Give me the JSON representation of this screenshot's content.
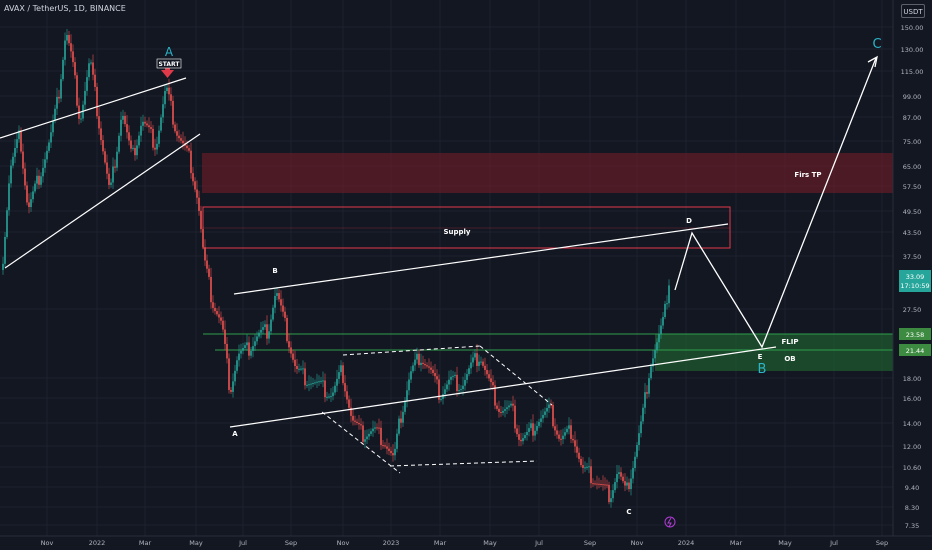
{
  "header": {
    "symbol_line": "AVAX / TetherUS, 1D, BINANCE"
  },
  "price_axis": {
    "currency": "USDT",
    "ticks": [
      "150.00",
      "130.00",
      "115.00",
      "99.00",
      "87.00",
      "75.00",
      "65.00",
      "57.50",
      "49.50",
      "43.50",
      "37.50",
      "27.50",
      "18.00",
      "16.00",
      "14.00",
      "12.00",
      "10.60",
      "9.40",
      "8.30",
      "7.35"
    ],
    "last_price": "33.09",
    "countdown": "17:10:59",
    "flip_top_price": "23.58",
    "flip_bottom_price": "21.44"
  },
  "time_axis": {
    "labels": [
      "Nov",
      "2022",
      "Mar",
      "May",
      "Jul",
      "Sep",
      "Nov",
      "2023",
      "Mar",
      "May",
      "Jul",
      "Sep",
      "Nov",
      "2024",
      "Mar",
      "May",
      "Jul",
      "Sep"
    ]
  },
  "annotations": {
    "start": "START",
    "wave_a_top": "A",
    "wave_b_low": "B",
    "wave_c_low": "C",
    "supply_label": "Supply",
    "first_tp_label": "Firs TP",
    "flip_label": "FLIP",
    "ob_label": "OB",
    "point_b": "B",
    "point_a": "A",
    "point_c": "C",
    "point_d": "D",
    "point_e": "E",
    "target_c": "C"
  },
  "colors": {
    "background": "#131722",
    "grid": "#1e222d",
    "up": "#26a69a",
    "down": "#ef5350",
    "teal_label": "#2bb5c8",
    "supply_zone": "#7a1e28",
    "flip_zone": "#1f5a2e"
  }
}
